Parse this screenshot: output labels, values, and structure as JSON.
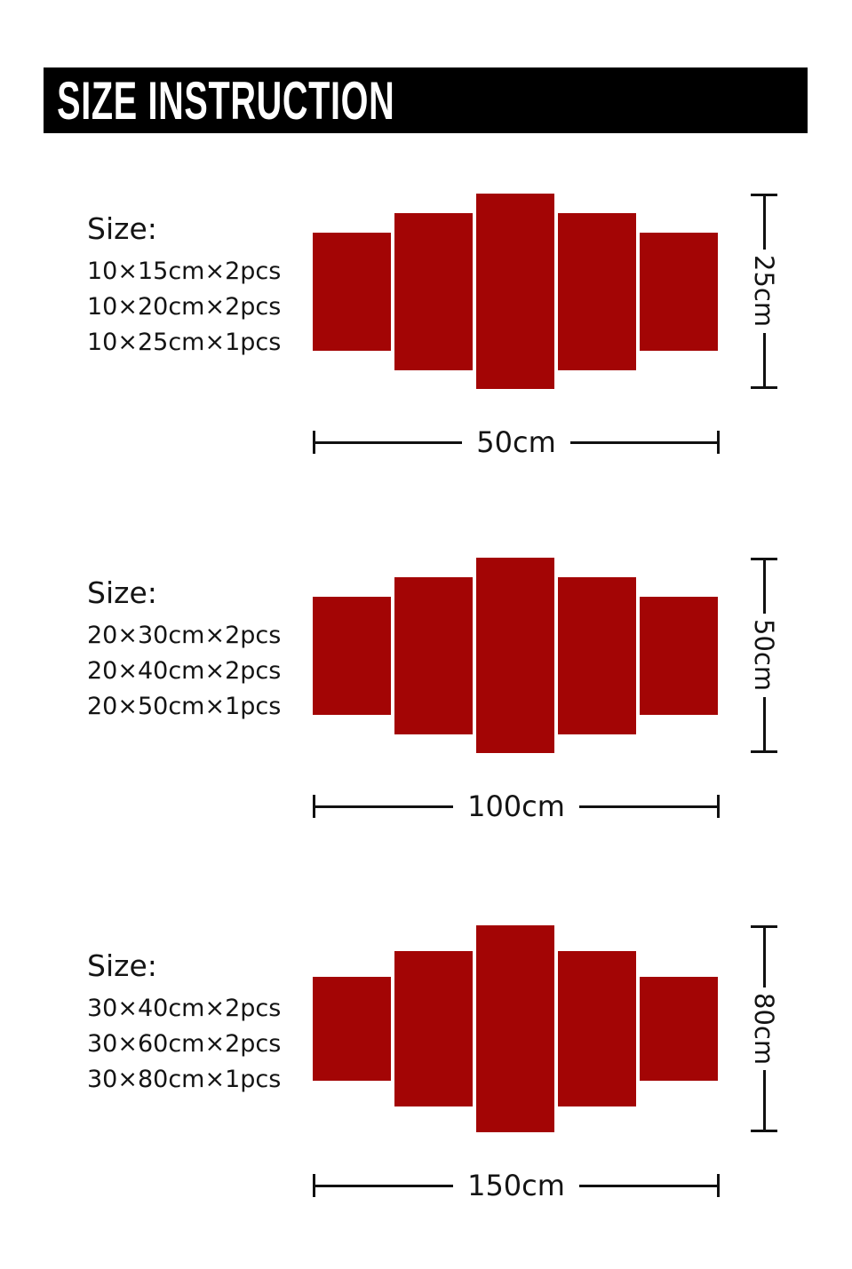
{
  "header": {
    "title": "SIZE INSTRUCTION"
  },
  "colors": {
    "panel_red": "#a30505",
    "header_bg": "#000000",
    "header_fg": "#ffffff",
    "dimension_line": "#111111"
  },
  "sections": [
    {
      "size_label": "Size:",
      "pieces": [
        "10×15cm×2pcs",
        "10×20cm×2pcs",
        "10×25cm×1pcs"
      ],
      "total_height_label": "25cm",
      "total_width_label": "50cm"
    },
    {
      "size_label": "Size:",
      "pieces": [
        "20×30cm×2pcs",
        "20×40cm×2pcs",
        "20×50cm×1pcs"
      ],
      "total_height_label": "50cm",
      "total_width_label": "100cm"
    },
    {
      "size_label": "Size:",
      "pieces": [
        "30×40cm×2pcs",
        "30×60cm×2pcs",
        "30×80cm×1pcs"
      ],
      "total_height_label": "80cm",
      "total_width_label": "150cm"
    }
  ]
}
